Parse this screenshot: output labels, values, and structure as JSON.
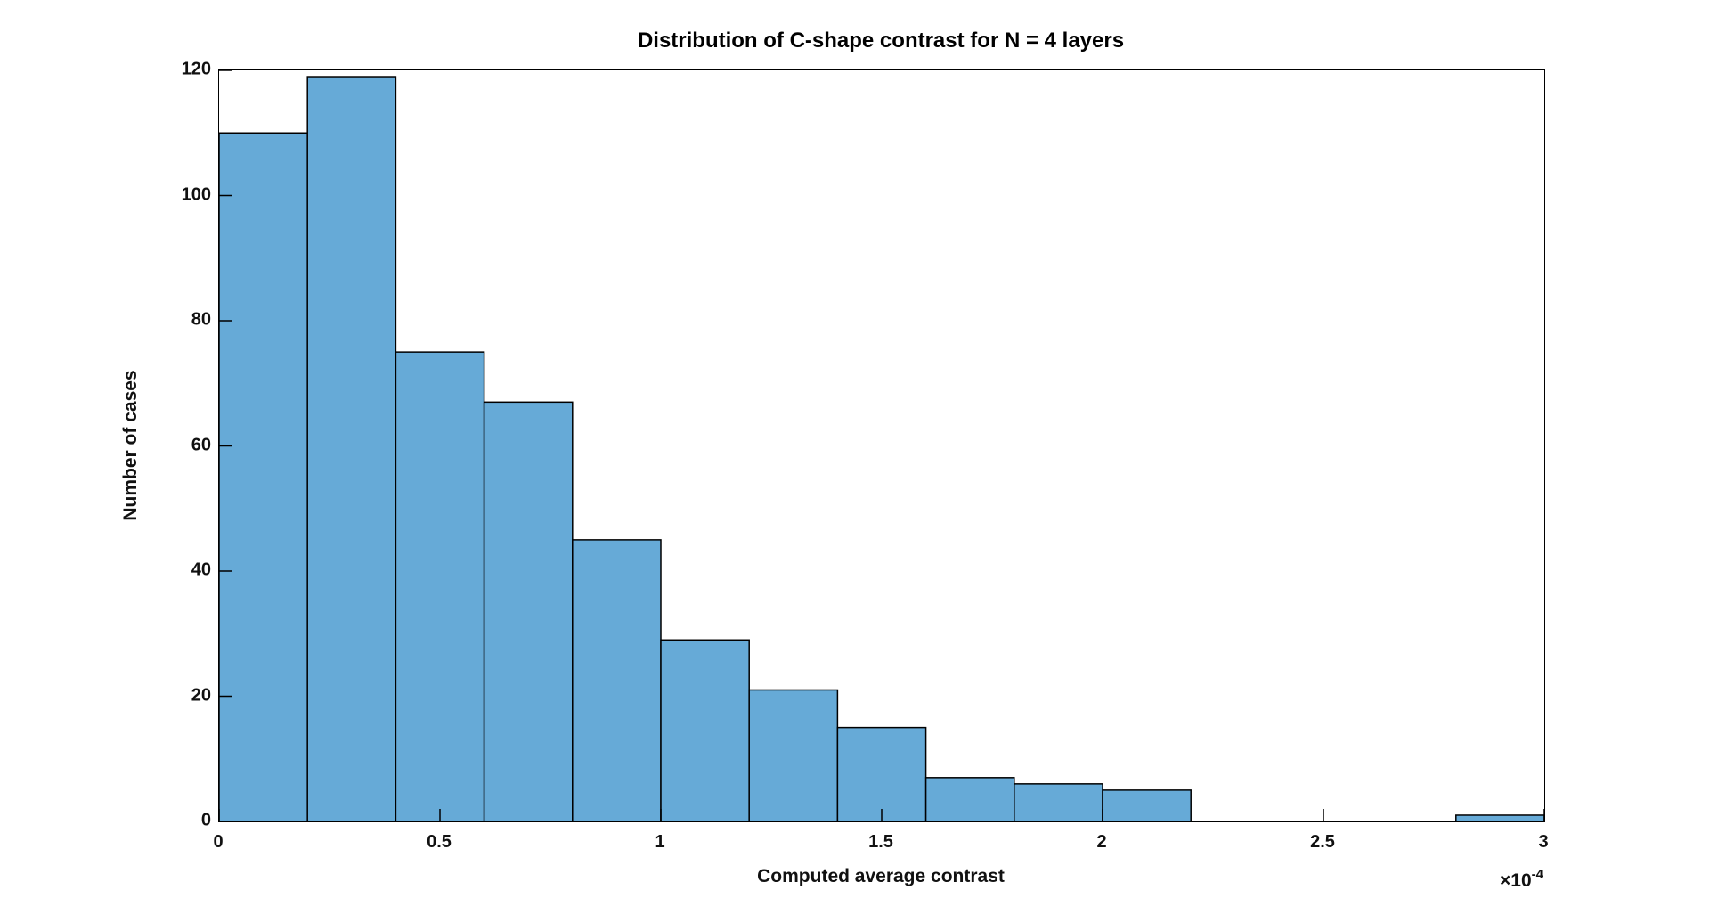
{
  "chart_data": {
    "type": "bar",
    "subtype": "histogram",
    "title": "Distribution of C-shape contrast for N = 4 layers",
    "xlabel": "Computed average contrast",
    "ylabel": "Number of cases",
    "x_axis_multiplier": {
      "base": "×10",
      "exponent": "-4"
    },
    "xlim": [
      0,
      3
    ],
    "ylim": [
      0,
      120
    ],
    "grid": false,
    "legend": null,
    "x_ticks": [
      {
        "value": 0,
        "label": "0"
      },
      {
        "value": 0.5,
        "label": "0.5"
      },
      {
        "value": 1,
        "label": "1"
      },
      {
        "value": 1.5,
        "label": "1.5"
      },
      {
        "value": 2,
        "label": "2"
      },
      {
        "value": 2.5,
        "label": "2.5"
      },
      {
        "value": 3,
        "label": "3"
      }
    ],
    "y_ticks": [
      {
        "value": 0,
        "label": "0"
      },
      {
        "value": 20,
        "label": "20"
      },
      {
        "value": 40,
        "label": "40"
      },
      {
        "value": 60,
        "label": "60"
      },
      {
        "value": 80,
        "label": "80"
      },
      {
        "value": 100,
        "label": "100"
      },
      {
        "value": 120,
        "label": "120"
      }
    ],
    "bin_width": 0.2,
    "bins": [
      {
        "x0": 0.0,
        "x1": 0.2,
        "count": 110
      },
      {
        "x0": 0.2,
        "x1": 0.4,
        "count": 119
      },
      {
        "x0": 0.4,
        "x1": 0.6,
        "count": 75
      },
      {
        "x0": 0.6,
        "x1": 0.8,
        "count": 67
      },
      {
        "x0": 0.8,
        "x1": 1.0,
        "count": 45
      },
      {
        "x0": 1.0,
        "x1": 1.2,
        "count": 29
      },
      {
        "x0": 1.2,
        "x1": 1.4,
        "count": 21
      },
      {
        "x0": 1.4,
        "x1": 1.6,
        "count": 15
      },
      {
        "x0": 1.6,
        "x1": 1.8,
        "count": 7
      },
      {
        "x0": 1.8,
        "x1": 2.0,
        "count": 6
      },
      {
        "x0": 2.0,
        "x1": 2.2,
        "count": 5
      },
      {
        "x0": 2.2,
        "x1": 2.4,
        "count": 0
      },
      {
        "x0": 2.4,
        "x1": 2.6,
        "count": 0
      },
      {
        "x0": 2.6,
        "x1": 2.8,
        "count": 0
      },
      {
        "x0": 2.8,
        "x1": 3.0,
        "count": 1
      }
    ],
    "styles": {
      "bar_fill": "#66AAD7",
      "bar_edge": "#000000",
      "axis_color": "#000000",
      "text_color": "#111111",
      "background": "#ffffff"
    }
  }
}
